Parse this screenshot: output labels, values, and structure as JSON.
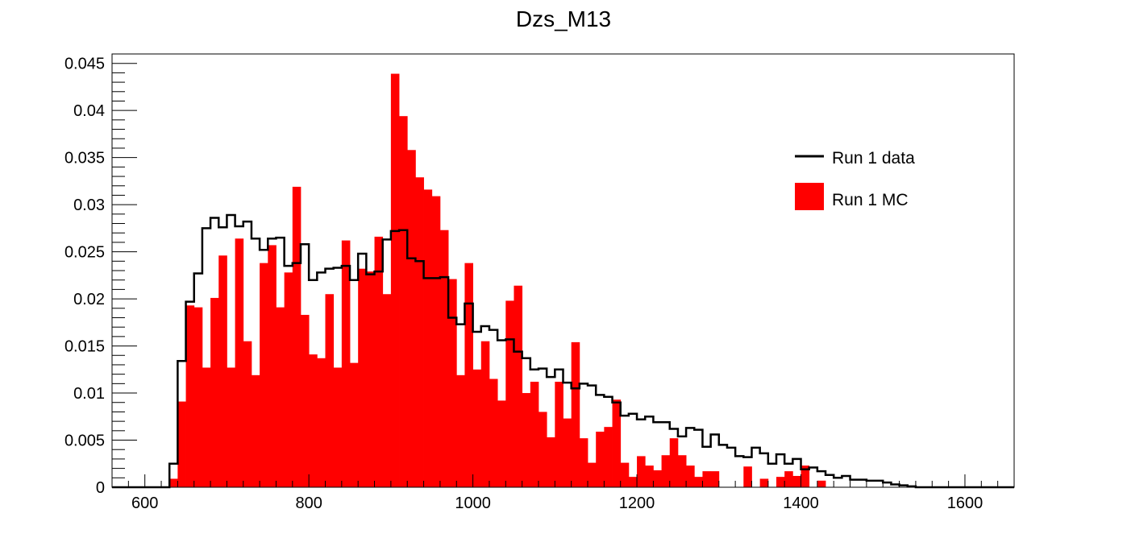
{
  "chart_data": {
    "type": "bar",
    "title": "Dzs_M13",
    "xlabel": "",
    "ylabel": "",
    "xlim": [
      560,
      1660
    ],
    "ylim": [
      0,
      0.046
    ],
    "bin_start": 560,
    "bin_width": 10,
    "x_ticks": [
      600,
      800,
      1000,
      1200,
      1400,
      1600
    ],
    "y_ticks": [
      0,
      0.005,
      0.01,
      0.015,
      0.02,
      0.025,
      0.03,
      0.035,
      0.04,
      0.045
    ],
    "x_tick_labels": [
      "600",
      "800",
      "1000",
      "1200",
      "1400",
      "1600"
    ],
    "y_tick_labels": [
      "0",
      "0.005",
      "0.01",
      "0.015",
      "0.02",
      "0.025",
      "0.03",
      "0.035",
      "0.04",
      "0.045"
    ],
    "legend": {
      "position": "top-right",
      "data_label": "Run 1 data",
      "mc_label": "Run 1 MC"
    },
    "colors": {
      "mc_fill": "#ff0000",
      "data_line": "#000000",
      "axis": "#000000"
    },
    "series": [
      {
        "name": "Run 1 MC",
        "style": "filled",
        "values": [
          0,
          0,
          0,
          0,
          0,
          0,
          0,
          0.0009,
          0.0091,
          0.0193,
          0.0191,
          0.0127,
          0.0201,
          0.0246,
          0.0127,
          0.0264,
          0.0155,
          0.0119,
          0.0238,
          0.0257,
          0.0191,
          0.0228,
          0.0319,
          0.0183,
          0.0141,
          0.0137,
          0.0205,
          0.0127,
          0.0262,
          0.0132,
          0.0232,
          0.0229,
          0.0266,
          0.0205,
          0.0439,
          0.0394,
          0.0358,
          0.0329,
          0.0316,
          0.0309,
          0.0273,
          0.0221,
          0.0119,
          0.0238,
          0.0125,
          0.0155,
          0.0115,
          0.0092,
          0.0198,
          0.0214,
          0.01,
          0.0112,
          0.008,
          0.0053,
          0.0112,
          0.0073,
          0.0154,
          0.0052,
          0.0026,
          0.0059,
          0.0064,
          0.0093,
          0.0026,
          0.0011,
          0.0033,
          0.0023,
          0.0018,
          0.0034,
          0.0052,
          0.0034,
          0.0023,
          0.0011,
          0.0017,
          0.0017,
          0,
          0,
          0,
          0.0022,
          0,
          0.0009,
          0,
          0.0011,
          0.0017,
          0.0012,
          0.0023,
          0,
          0.0007,
          0,
          0,
          0,
          0,
          0,
          0,
          0,
          0,
          0,
          0,
          0,
          0,
          0,
          0,
          0,
          0,
          0,
          0,
          0,
          0,
          0,
          0,
          0
        ]
      },
      {
        "name": "Run 1 data",
        "style": "step",
        "values": [
          0,
          0,
          0,
          0,
          0,
          0,
          0,
          0.0025,
          0.0134,
          0.0197,
          0.0227,
          0.0275,
          0.0286,
          0.0276,
          0.0289,
          0.0277,
          0.0282,
          0.0264,
          0.0252,
          0.0264,
          0.0265,
          0.0235,
          0.0238,
          0.0258,
          0.022,
          0.0228,
          0.0232,
          0.0233,
          0.0235,
          0.022,
          0.0248,
          0.0226,
          0.0229,
          0.0263,
          0.0272,
          0.0273,
          0.0243,
          0.024,
          0.0222,
          0.0222,
          0.0223,
          0.018,
          0.0173,
          0.0195,
          0.0165,
          0.0171,
          0.0167,
          0.0156,
          0.0157,
          0.0144,
          0.0137,
          0.0125,
          0.0126,
          0.0117,
          0.0125,
          0.0111,
          0.0105,
          0.011,
          0.0108,
          0.0098,
          0.0096,
          0.009,
          0.0076,
          0.0078,
          0.0072,
          0.0075,
          0.0069,
          0.0069,
          0.0062,
          0.0054,
          0.0063,
          0.0061,
          0.0043,
          0.0056,
          0.0045,
          0.0042,
          0.0033,
          0.0032,
          0.0042,
          0.0036,
          0.0025,
          0.0035,
          0.0025,
          0.003,
          0.0019,
          0.0021,
          0.0017,
          0.0013,
          0.001,
          0.0012,
          0.0008,
          0.0008,
          0.0007,
          0.0007,
          0.0005,
          0.0003,
          0.0002,
          0.0001,
          0,
          0,
          0,
          0,
          0,
          0,
          0,
          0,
          0,
          0,
          0,
          0
        ]
      }
    ]
  }
}
